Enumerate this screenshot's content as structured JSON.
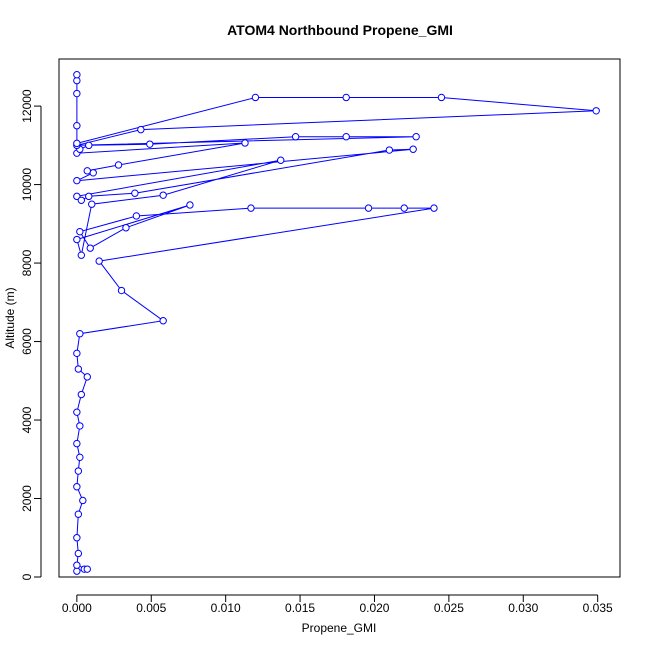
{
  "chart_data": {
    "type": "line",
    "title": "ATOM4 Northbound Propene_GMI",
    "xlabel": "Propene_GMI",
    "ylabel": "Altitude (m)",
    "xlim": [
      -0.0012,
      0.0365
    ],
    "ylim": [
      0,
      13200
    ],
    "x_ticks": [
      0,
      0.005,
      0.01,
      0.015,
      0.02,
      0.025,
      0.03,
      0.035
    ],
    "x_tick_labels": [
      "0.000",
      "0.005",
      "0.010",
      "0.015",
      "0.020",
      "0.025",
      "0.030",
      "0.035"
    ],
    "y_ticks": [
      0,
      2000,
      4000,
      6000,
      8000,
      10000,
      12000
    ],
    "y_tick_labels": [
      "0",
      "2000",
      "4000",
      "6000",
      "8000",
      "10000",
      "12000"
    ],
    "grid": false,
    "legend": "none",
    "colors": {
      "series": "#0000ff",
      "axes": "#000000"
    },
    "series": [
      {
        "points": [
          [
            0.0,
            150
          ],
          [
            0.0005,
            200
          ],
          [
            0.0007,
            200
          ],
          [
            0.0,
            300
          ],
          [
            0.0001,
            600
          ],
          [
            0.0,
            1000
          ],
          [
            0.0001,
            1600
          ],
          [
            0.0004,
            1950
          ],
          [
            0.0,
            2300
          ],
          [
            0.0001,
            2700
          ],
          [
            0.0002,
            3050
          ],
          [
            0.0,
            3400
          ],
          [
            0.0002,
            3850
          ],
          [
            0.0,
            4200
          ],
          [
            0.0003,
            4650
          ],
          [
            0.0007,
            5100
          ],
          [
            0.0001,
            5300
          ],
          [
            0.0,
            5700
          ],
          [
            0.0002,
            6200
          ],
          [
            0.0058,
            6530
          ],
          [
            0.003,
            7300
          ],
          [
            0.0015,
            8050
          ],
          [
            0.024,
            9400
          ],
          [
            0.022,
            9400
          ],
          [
            0.0196,
            9400
          ],
          [
            0.0117,
            9400
          ],
          [
            0.004,
            9200
          ],
          [
            0.0002,
            8800
          ],
          [
            0.0009,
            8380
          ],
          [
            0.0033,
            8900
          ],
          [
            0.0076,
            9480
          ],
          [
            0.0,
            8600
          ],
          [
            0.0003,
            8200
          ],
          [
            0.001,
            9500
          ],
          [
            0.0058,
            9730
          ],
          [
            0.0137,
            10620
          ],
          [
            0.0,
            9700
          ],
          [
            0.0003,
            9600
          ],
          [
            0.0008,
            9700
          ],
          [
            0.0039,
            9780
          ],
          [
            0.021,
            10880
          ],
          [
            0.0226,
            10900
          ],
          [
            0.0,
            10100
          ],
          [
            0.0011,
            10300
          ],
          [
            0.0007,
            10350
          ],
          [
            0.0028,
            10500
          ],
          [
            0.0113,
            11060
          ],
          [
            0.0,
            10800
          ],
          [
            0.0002,
            10900
          ],
          [
            0.0008,
            11000
          ],
          [
            0.0049,
            11030
          ],
          [
            0.0147,
            11220
          ],
          [
            0.0181,
            11220
          ],
          [
            0.0228,
            11220
          ],
          [
            0.0,
            11000
          ],
          [
            0.0043,
            11400
          ],
          [
            0.0349,
            11880
          ],
          [
            0.0245,
            12220
          ],
          [
            0.0181,
            12220
          ],
          [
            0.012,
            12220
          ],
          [
            0.0,
            11050
          ],
          [
            0.0,
            11500
          ],
          [
            0.0,
            12320
          ],
          [
            0.0,
            12650
          ],
          [
            0.0,
            12800
          ]
        ]
      }
    ]
  }
}
